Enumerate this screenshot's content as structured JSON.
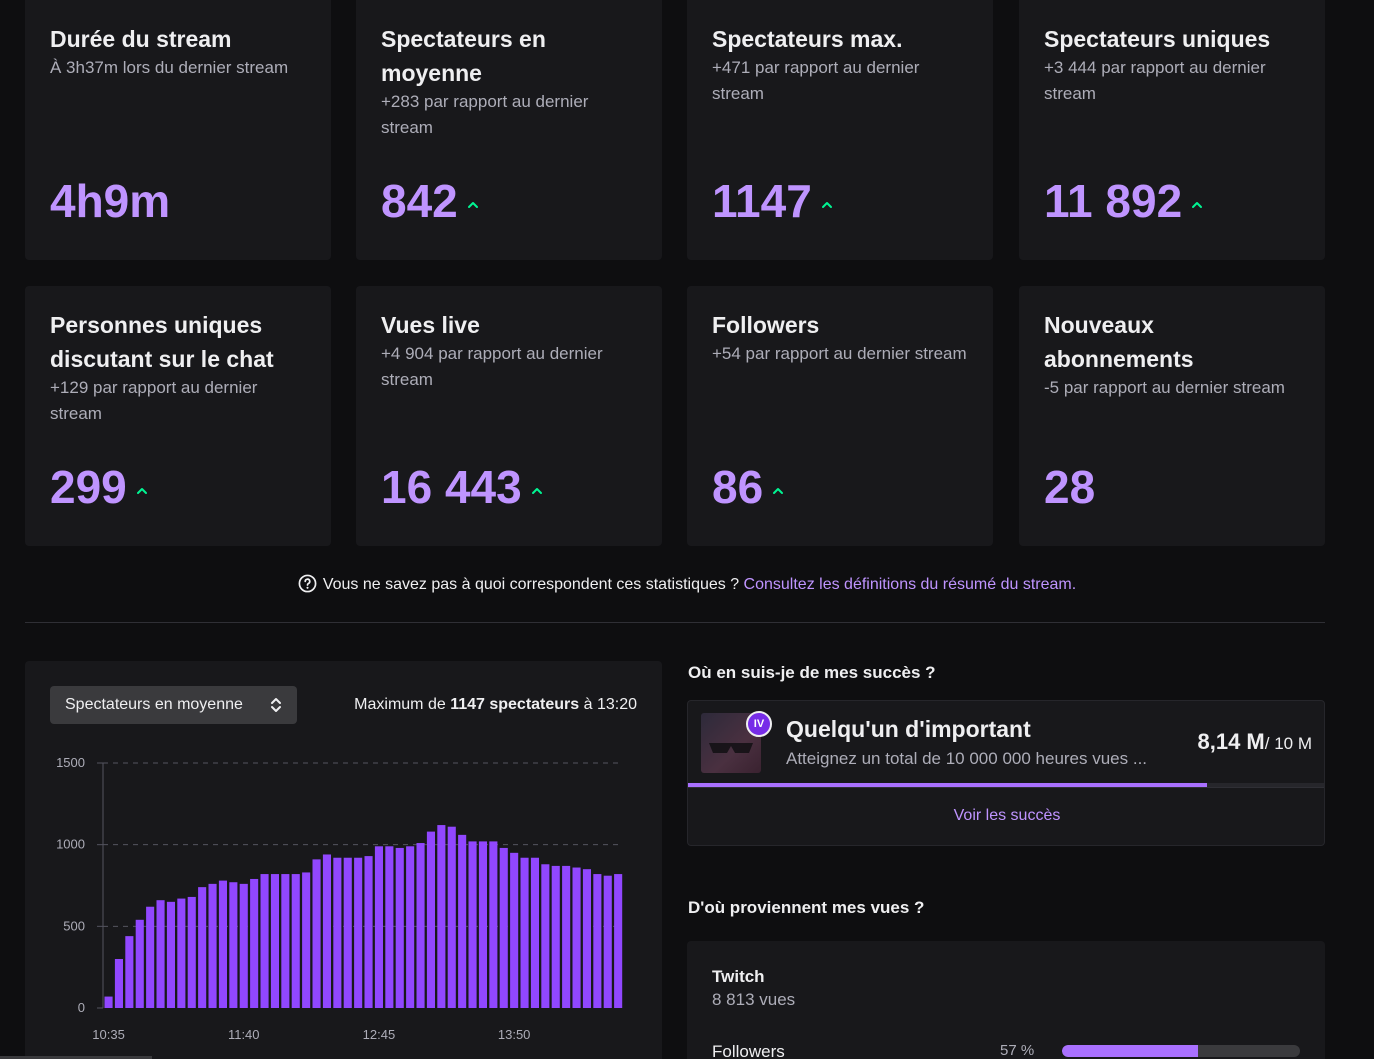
{
  "stats": [
    {
      "title": "Durée du stream",
      "sub": "À 3h37m lors du dernier stream",
      "value": "4h9m",
      "trend_up": false
    },
    {
      "title": "Spectateurs en moyenne",
      "sub": "+283 par rapport au dernier stream",
      "value": "842",
      "trend_up": true
    },
    {
      "title": "Spectateurs max.",
      "sub": "+471 par rapport au dernier stream",
      "value": "1147",
      "trend_up": true
    },
    {
      "title": "Spectateurs uniques",
      "sub": "+3 444 par rapport au dernier stream",
      "value": "11 892",
      "trend_up": true
    },
    {
      "title": "Personnes uniques discutant sur le chat",
      "sub": "+129 par rapport au dernier stream",
      "value": "299",
      "trend_up": true
    },
    {
      "title": "Vues live",
      "sub": "+4 904 par rapport au dernier stream",
      "value": "16 443",
      "trend_up": true
    },
    {
      "title": "Followers",
      "sub": "+54 par rapport au dernier stream",
      "value": "86",
      "trend_up": true
    },
    {
      "title": "Nouveaux abonnements",
      "sub": "-5 par rapport au dernier stream",
      "value": "28",
      "trend_up": false
    }
  ],
  "hint": {
    "text": "Vous ne savez pas à quoi correspondent ces statistiques ? ",
    "link": "Consultez les définitions du résumé du stream."
  },
  "chart_panel": {
    "select_label": "Spectateurs en moyenne",
    "max_prefix": "Maximum de ",
    "max_bold": "1147 spectateurs",
    "max_suffix": " à 13:20"
  },
  "chart_data": {
    "type": "bar",
    "ylim": [
      0,
      1500
    ],
    "yticks": [
      0,
      500,
      1000,
      1500
    ],
    "xtick_labels": [
      "10:35",
      "11:40",
      "12:45",
      "13:50"
    ],
    "xtick_indices": [
      0,
      13,
      26,
      39
    ],
    "color": "#9147ff",
    "values": [
      70,
      300,
      440,
      540,
      620,
      660,
      650,
      670,
      680,
      740,
      760,
      780,
      770,
      760,
      790,
      820,
      820,
      820,
      820,
      830,
      910,
      940,
      920,
      920,
      920,
      930,
      990,
      990,
      980,
      990,
      1010,
      1080,
      1120,
      1110,
      1060,
      1020,
      1020,
      1020,
      980,
      950,
      920,
      920,
      880,
      870,
      870,
      860,
      850,
      820,
      810,
      820
    ]
  },
  "achievements": {
    "section_title": "Où en suis-je de mes succès ?",
    "badge": "IV",
    "name": "Quelqu'un d'important",
    "desc": "Atteignez un total de 10 000 000 heures vues ...",
    "progress_value": "8,14 M",
    "progress_total": "/ 10 M",
    "progress_fraction": 0.814,
    "link": "Voir les succès"
  },
  "sources": {
    "section_title": "D'où proviennent mes vues ?",
    "name": "Twitch",
    "views": "8 813 vues",
    "row_label": "Followers",
    "row_pct": "57 %",
    "row_fraction": 0.57
  }
}
